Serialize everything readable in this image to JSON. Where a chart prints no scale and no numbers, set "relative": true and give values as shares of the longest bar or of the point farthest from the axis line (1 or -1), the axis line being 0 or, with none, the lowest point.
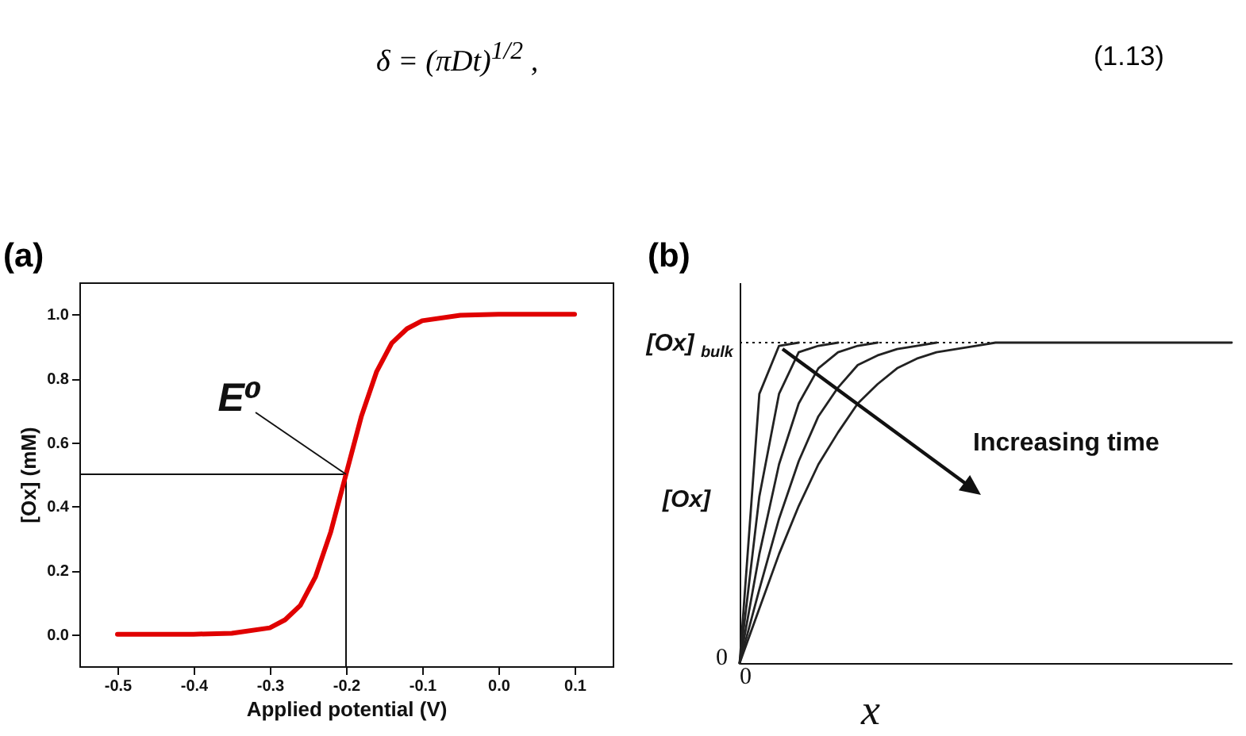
{
  "chart_data": [
    {
      "type": "line",
      "title": "(a)",
      "xlabel": "Applied potential (V)",
      "ylabel": "[Ox] (mM)",
      "x": [
        -0.5,
        -0.4,
        -0.35,
        -0.3,
        -0.28,
        -0.26,
        -0.24,
        -0.22,
        -0.2,
        -0.18,
        -0.16,
        -0.14,
        -0.12,
        -0.1,
        -0.05,
        0,
        0.1
      ],
      "series": [
        {
          "color": "#e00000",
          "values": [
            0,
            0,
            0.003,
            0.02,
            0.045,
            0.09,
            0.18,
            0.32,
            0.5,
            0.68,
            0.82,
            0.91,
            0.955,
            0.98,
            0.997,
            1,
            1
          ]
        }
      ],
      "xlim": [
        -0.55,
        0.15
      ],
      "xticks": [
        -0.5,
        -0.4,
        -0.3,
        -0.2,
        -0.1,
        {
          "value": 0,
          "label": "0.0"
        },
        0.1
      ],
      "ylim": [
        -0.1,
        1.1
      ],
      "yticks": [
        {
          "value": 0,
          "label": "0.0"
        },
        0.2,
        0.4,
        0.6,
        0.8,
        {
          "value": 1,
          "label": "1.0"
        }
      ],
      "ref_lines": [
        {
          "axis": "y",
          "value": 0.5
        },
        {
          "axis": "x",
          "value": -0.2
        }
      ],
      "annotations": [
        {
          "text": "E⁰",
          "x": -0.2,
          "y": 0.5
        },
        "δ = (πDt)$^{1/2}$ ,",
        "(1.13)"
      ],
      "grid": false,
      "legend": false
    },
    {
      "type": "line",
      "title": "(b)",
      "xlabel": "x",
      "ylabel": "[Ox]",
      "relative": true,
      "categories": [
        null,
        null,
        null,
        null,
        null,
        null,
        null,
        null,
        null,
        null,
        null,
        null,
        null,
        null,
        null,
        null,
        null,
        null,
        null,
        null,
        null,
        null,
        null,
        null,
        null,
        null
      ],
      "series": [
        {
          "color": "#222222",
          "values": [
            0,
            0.84,
            0.99,
            1,
            null,
            null,
            null,
            null,
            null,
            null,
            null,
            null,
            null,
            null,
            null,
            null,
            null,
            null,
            null,
            null,
            null,
            null,
            null,
            null,
            null,
            null
          ]
        },
        {
          "color": "#222222",
          "values": [
            0,
            0.52,
            0.84,
            0.97,
            0.99,
            1,
            null,
            null,
            null,
            null,
            null,
            null,
            null,
            null,
            null,
            null,
            null,
            null,
            null,
            null,
            null,
            null,
            null,
            null,
            null,
            null
          ]
        },
        {
          "color": "#222222",
          "values": [
            0,
            0.34,
            0.62,
            0.81,
            0.92,
            0.97,
            0.99,
            1,
            null,
            null,
            null,
            null,
            null,
            null,
            null,
            null,
            null,
            null,
            null,
            null,
            null,
            null,
            null,
            null,
            null,
            null
          ]
        },
        {
          "color": "#222222",
          "values": [
            0,
            0.23,
            0.45,
            0.63,
            0.77,
            0.86,
            0.93,
            0.96,
            0.98,
            0.99,
            1,
            null,
            null,
            null,
            null,
            null,
            null,
            null,
            null,
            null,
            null,
            null,
            null,
            null,
            null,
            null
          ]
        },
        {
          "color": "#222222",
          "values": [
            0,
            0.17,
            0.34,
            0.49,
            0.62,
            0.72,
            0.81,
            0.87,
            0.92,
            0.95,
            0.97,
            0.98,
            0.99,
            1,
            1,
            1,
            1,
            1,
            1,
            1,
            1,
            1,
            1,
            1,
            1,
            1
          ]
        }
      ],
      "ref_lines": [
        {
          "axis": "y",
          "value": 1,
          "label": "[Ox]$_{bulk}$",
          "line_style": "dotted"
        }
      ],
      "annotations": [
        "0",
        "0",
        "Increasing time"
      ],
      "grid": false,
      "legend": false
    }
  ]
}
